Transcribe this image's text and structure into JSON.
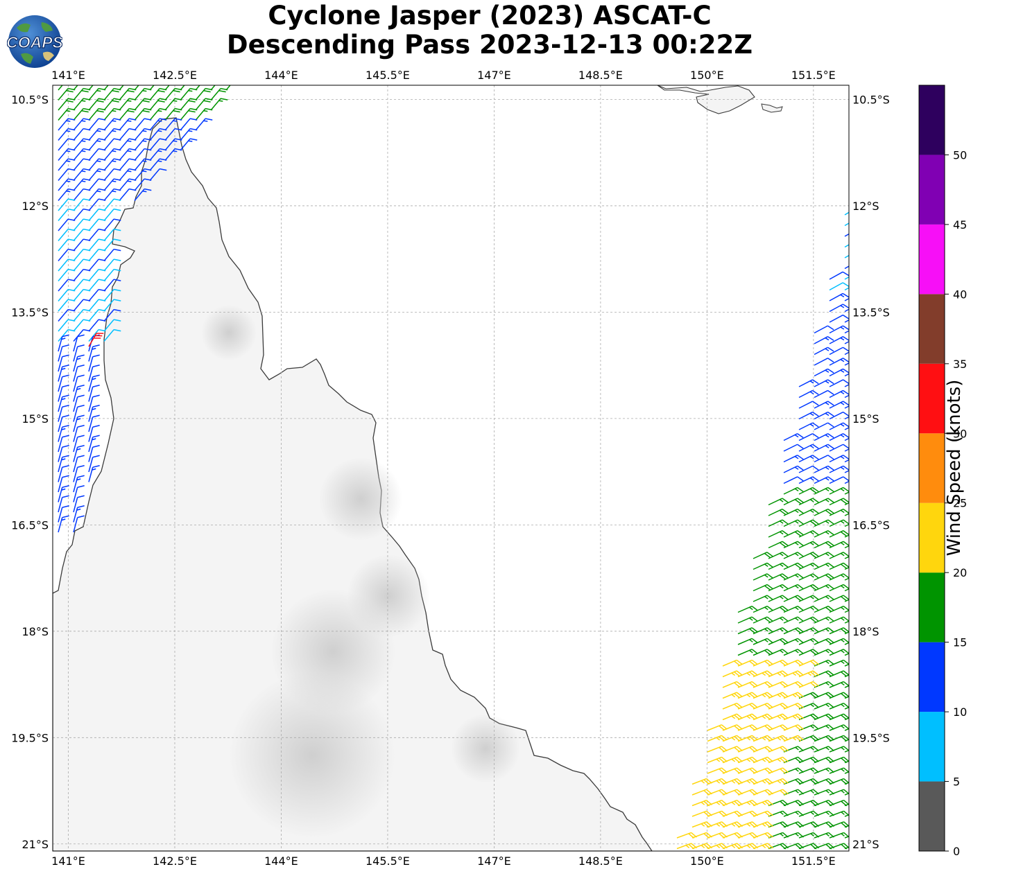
{
  "title": {
    "line1": "Cyclone Jasper (2023) ASCAT-C",
    "line2": "Descending Pass 2023-12-13 00:22Z"
  },
  "logo": {
    "text": "COAPS"
  },
  "map": {
    "lon_ticks": [
      "141°E",
      "142.5°E",
      "144°E",
      "145.5°E",
      "147°E",
      "148.5°E",
      "150°E",
      "151.5°E"
    ],
    "lat_ticks": [
      "10.5°S",
      "12°S",
      "13.5°S",
      "15°S",
      "16.5°S",
      "18°S",
      "19.5°S",
      "21°S"
    ],
    "extent": {
      "lon_min": 140.78,
      "lon_max": 152.0,
      "lat_north": -10.3,
      "lat_south": -21.1
    },
    "gridlines": true,
    "land_shading": "grayscale terrain"
  },
  "colorbar": {
    "label": "Wind Speed (knots)",
    "ticks": [
      "0",
      "5",
      "10",
      "15",
      "20",
      "25",
      "30",
      "35",
      "40",
      "45",
      "50"
    ],
    "bins": [
      {
        "from": 0,
        "to": 5,
        "color": "#595959"
      },
      {
        "from": 5,
        "to": 10,
        "color": "#00bfff"
      },
      {
        "from": 10,
        "to": 15,
        "color": "#0038ff"
      },
      {
        "from": 15,
        "to": 20,
        "color": "#009400"
      },
      {
        "from": 20,
        "to": 25,
        "color": "#ffd60d"
      },
      {
        "from": 25,
        "to": 30,
        "color": "#ff8c0d"
      },
      {
        "from": 30,
        "to": 35,
        "color": "#ff0f12"
      },
      {
        "from": 35,
        "to": 40,
        "color": "#823d2b"
      },
      {
        "from": 40,
        "to": 45,
        "color": "#f70ff7"
      },
      {
        "from": 45,
        "to": 50,
        "color": "#8000b3"
      },
      {
        "from": 50,
        "to": 55,
        "color": "#2e005e"
      }
    ]
  }
}
